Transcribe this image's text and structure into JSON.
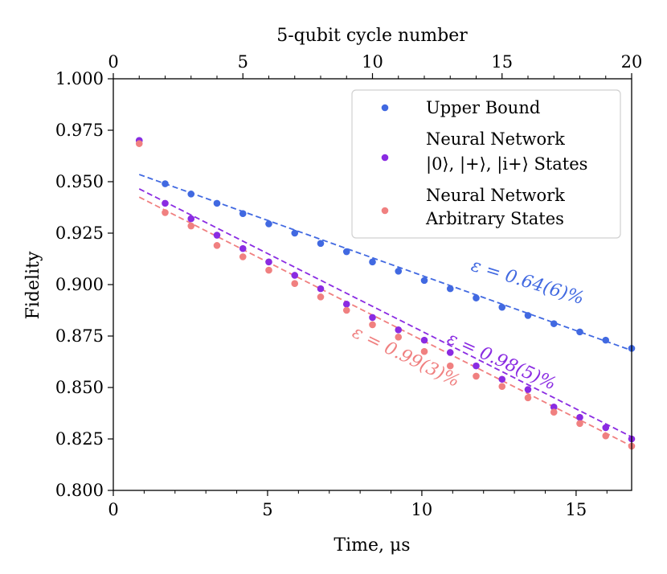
{
  "chart_data": {
    "type": "scatter",
    "title": "",
    "xlabel": "Time, μs",
    "ylabel": "Fidelity",
    "top_xlabel": "5-qubit cycle number",
    "xlim": [
      0,
      16.8
    ],
    "ylim": [
      0.8,
      1.0
    ],
    "top_xlim": [
      0,
      20
    ],
    "xticks": [
      0,
      5,
      10,
      15
    ],
    "xtick_labels": [
      "0",
      "5",
      "10",
      "15"
    ],
    "yticks": [
      0.8,
      0.825,
      0.85,
      0.875,
      0.9,
      0.925,
      0.95,
      0.975,
      1.0
    ],
    "ytick_labels": [
      "0.800",
      "0.825",
      "0.850",
      "0.875",
      "0.900",
      "0.925",
      "0.950",
      "0.975",
      "1.000"
    ],
    "top_xticks": [
      0,
      5,
      10,
      15,
      20
    ],
    "top_xtick_labels": [
      "0",
      "5",
      "10",
      "15",
      "20"
    ],
    "grid": false,
    "legend_position": "top-right",
    "series": [
      {
        "name": "Upper Bound",
        "color": "#4169e1",
        "x": [
          0.84,
          1.68,
          2.52,
          3.36,
          4.2,
          5.04,
          5.88,
          6.72,
          7.56,
          8.4,
          9.24,
          10.08,
          10.92,
          11.76,
          12.6,
          13.44,
          14.28,
          15.12,
          15.96,
          16.8
        ],
        "values": [
          0.97,
          0.949,
          0.944,
          0.9395,
          0.9345,
          0.9295,
          0.925,
          0.92,
          0.916,
          0.911,
          0.9065,
          0.902,
          0.898,
          0.8935,
          0.889,
          0.885,
          0.881,
          0.877,
          0.873,
          0.869
        ],
        "fit_x": [
          0.84,
          16.8
        ],
        "fit_y": [
          0.9535,
          0.868
        ],
        "annotation": "ε = 0.64(6)%"
      },
      {
        "name": "Neural Network |0⟩, |+⟩, |i+⟩ States",
        "legend_lines": [
          "Neural Network",
          "|0⟩, |+⟩, |i+⟩ States"
        ],
        "color": "#8a2be2",
        "x": [
          0.84,
          1.68,
          2.52,
          3.36,
          4.2,
          5.04,
          5.88,
          6.72,
          7.56,
          8.4,
          9.24,
          10.08,
          10.92,
          11.76,
          12.6,
          13.44,
          14.28,
          15.12,
          15.96,
          16.8
        ],
        "values": [
          0.97,
          0.9395,
          0.932,
          0.924,
          0.9175,
          0.911,
          0.9045,
          0.898,
          0.8905,
          0.884,
          0.878,
          0.873,
          0.867,
          0.8605,
          0.854,
          0.849,
          0.8405,
          0.8355,
          0.8305,
          0.825
        ],
        "fit_x": [
          0.84,
          16.8
        ],
        "fit_y": [
          0.9465,
          0.826
        ],
        "annotation": "ε = 0.98(5)%"
      },
      {
        "name": "Neural Network Arbitrary States",
        "legend_lines": [
          "Neural Network",
          "Arbitrary States"
        ],
        "color": "#f08080",
        "x": [
          0.84,
          1.68,
          2.52,
          3.36,
          4.2,
          5.04,
          5.88,
          6.72,
          7.56,
          8.4,
          9.24,
          10.08,
          10.92,
          11.76,
          12.6,
          13.44,
          14.28,
          15.12,
          15.96,
          16.8
        ],
        "values": [
          0.9685,
          0.935,
          0.9285,
          0.919,
          0.9135,
          0.907,
          0.9005,
          0.894,
          0.8875,
          0.8805,
          0.8745,
          0.8675,
          0.8605,
          0.8555,
          0.8505,
          0.845,
          0.838,
          0.8325,
          0.8265,
          0.8215
        ],
        "fit_x": [
          0.84,
          16.8
        ],
        "fit_y": [
          0.9425,
          0.8215
        ],
        "annotation": "ε = 0.99(3)%"
      }
    ]
  }
}
